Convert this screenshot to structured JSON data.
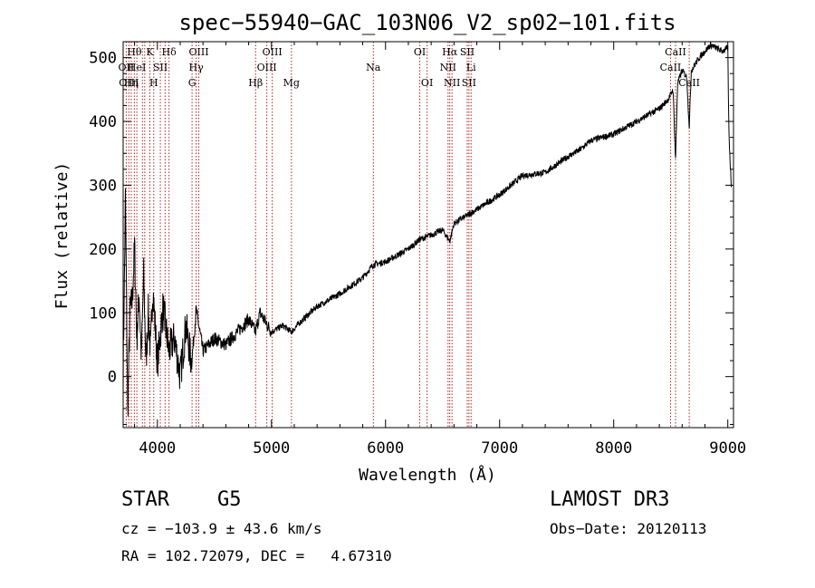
{
  "chart_data": {
    "type": "line",
    "title": "spec−55940−GAC_103N06_V2_sp02−101.fits",
    "xlabel": "Wavelength (Å)",
    "ylabel": "Flux (relative)",
    "xlim": [
      3700,
      9050
    ],
    "ylim": [
      -80,
      525
    ],
    "x_ticks": [
      4000,
      5000,
      6000,
      7000,
      8000,
      9000
    ],
    "y_ticks": [
      0,
      100,
      200,
      300,
      400,
      500
    ],
    "x_tick_labels": [
      "4000",
      "5000",
      "6000",
      "7000",
      "8000",
      "9000"
    ],
    "y_tick_labels": [
      "0",
      "100",
      "200",
      "300",
      "400",
      "500"
    ],
    "grid": false,
    "series": [
      {
        "name": "flux",
        "color": "#000000",
        "x": [
          3700,
          3720,
          3740,
          3760,
          3780,
          3800,
          3820,
          3840,
          3860,
          3880,
          3900,
          3920,
          3940,
          3960,
          3980,
          4000,
          4050,
          4100,
          4150,
          4200,
          4250,
          4300,
          4340,
          4400,
          4500,
          4600,
          4700,
          4800,
          4860,
          4900,
          5000,
          5100,
          5175,
          5250,
          5400,
          5600,
          5800,
          5890,
          6000,
          6200,
          6300,
          6400,
          6500,
          6563,
          6600,
          6800,
          7000,
          7200,
          7400,
          7600,
          7700,
          7800,
          8000,
          8200,
          8400,
          8480,
          8520,
          8542,
          8560,
          8600,
          8640,
          8662,
          8680,
          8750,
          8850,
          8950,
          9000,
          9010,
          9030
        ],
        "values": [
          0,
          280,
          -55,
          100,
          120,
          205,
          60,
          130,
          30,
          160,
          20,
          100,
          40,
          140,
          80,
          20,
          110,
          40,
          60,
          0,
          80,
          20,
          105,
          40,
          60,
          50,
          70,
          90,
          70,
          100,
          70,
          80,
          70,
          85,
          110,
          130,
          155,
          175,
          180,
          200,
          215,
          222,
          230,
          212,
          240,
          262,
          285,
          315,
          320,
          345,
          355,
          370,
          380,
          400,
          420,
          435,
          450,
          340,
          460,
          480,
          470,
          390,
          480,
          500,
          520,
          510,
          515,
          380,
          300
        ]
      }
    ],
    "lines": [
      {
        "x": 3727,
        "label": "OII",
        "row": 1
      },
      {
        "x": 3750,
        "label": "OIII",
        "row": 2
      },
      {
        "x": 3771,
        "label": "Hη",
        "row": 2
      },
      {
        "x": 3798,
        "label": "Hθ",
        "row": 0
      },
      {
        "x": 3820,
        "label": "HeI",
        "row": 1
      },
      {
        "x": 3869,
        "label": "",
        "row": -1
      },
      {
        "x": 3889,
        "label": "",
        "row": -1
      },
      {
        "x": 3934,
        "label": "K",
        "row": 0
      },
      {
        "x": 3968,
        "label": "H",
        "row": 2
      },
      {
        "x": 4026,
        "label": "SII",
        "row": 1
      },
      {
        "x": 4068,
        "label": "",
        "row": -1
      },
      {
        "x": 4102,
        "label": "Hδ",
        "row": 0
      },
      {
        "x": 4304,
        "label": "G",
        "row": 2
      },
      {
        "x": 4340,
        "label": "Hγ",
        "row": 1
      },
      {
        "x": 4363,
        "label": "OIII",
        "row": 0
      },
      {
        "x": 4861,
        "label": "Hβ",
        "row": 2
      },
      {
        "x": 4959,
        "label": "OIII",
        "row": 1
      },
      {
        "x": 5007,
        "label": "OIII",
        "row": 0
      },
      {
        "x": 5175,
        "label": "Mg",
        "row": 2
      },
      {
        "x": 5893,
        "label": "Na",
        "row": 1
      },
      {
        "x": 6300,
        "label": "OI",
        "row": 0
      },
      {
        "x": 6364,
        "label": "OI",
        "row": 2
      },
      {
        "x": 6548,
        "label": "NII",
        "row": 1
      },
      {
        "x": 6563,
        "label": "Hα",
        "row": 0
      },
      {
        "x": 6583,
        "label": "NII",
        "row": 2
      },
      {
        "x": 6716,
        "label": "SII",
        "row": 0
      },
      {
        "x": 6731,
        "label": "SII",
        "row": 2
      },
      {
        "x": 6750,
        "label": "Li",
        "row": 1
      },
      {
        "x": 8498,
        "label": "CaII",
        "row": 1
      },
      {
        "x": 8542,
        "label": "CaII",
        "row": 0
      },
      {
        "x": 8662,
        "label": "CaII",
        "row": 2
      }
    ],
    "line_color": "#b22222"
  },
  "info": {
    "class": "STAR",
    "subclass": "G5",
    "survey": "LAMOST DR3",
    "cz": "cz = −103.9 ± 43.6 km/s",
    "obs_date": "Obs−Date: 20120113",
    "radec": "RA = 102.72079, DEC =   4.67310"
  }
}
